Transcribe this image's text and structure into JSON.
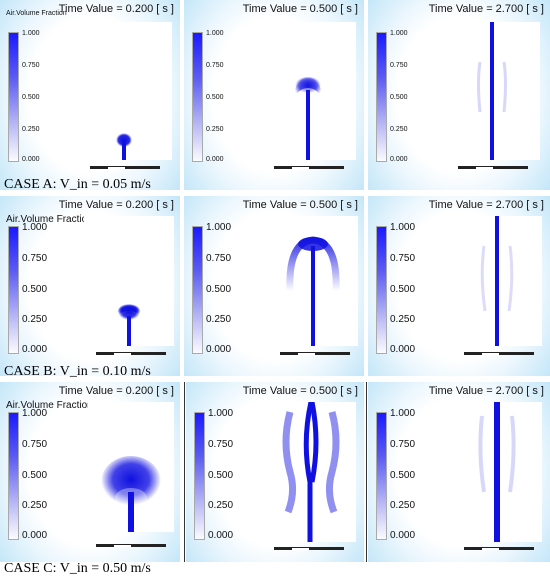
{
  "legend": {
    "title": "Air.Volume Fraction",
    "ticks": [
      "1.000",
      "0.750",
      "0.500",
      "0.250",
      "0.000"
    ]
  },
  "times": [
    "Time Value = 0.200 [ s ]",
    "Time Value = 0.500 [ s ]",
    "Time Value = 2.700 [ s ]"
  ],
  "cases": [
    {
      "label": "CASE A: V_in = 0.05 m/s"
    },
    {
      "label": "CASE B: V_in = 0.10 m/s"
    },
    {
      "label": "CASE C: V_in = 0.50 m/s"
    }
  ],
  "colors": {
    "plume": "#1010e0",
    "panel_edge": "#b9e2f7"
  }
}
